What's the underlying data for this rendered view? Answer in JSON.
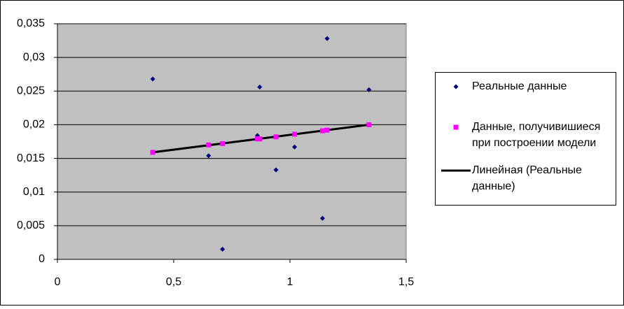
{
  "chart_data": {
    "type": "scatter",
    "xlim": [
      0,
      1.5
    ],
    "xticks": [
      0,
      {
        "value": 0.5,
        "label": "0,5"
      },
      1,
      {
        "value": 1.5,
        "label": "1,5"
      }
    ],
    "ylim": [
      0,
      0.035
    ],
    "yticks": [
      0,
      {
        "value": 0.005,
        "label": "0,005"
      },
      {
        "value": 0.01,
        "label": "0,01"
      },
      {
        "value": 0.015,
        "label": "0,015"
      },
      {
        "value": 0.02,
        "label": "0,02"
      },
      {
        "value": 0.025,
        "label": "0,025"
      },
      {
        "value": 0.03,
        "label": "0,03"
      },
      {
        "value": 0.035,
        "label": "0,035"
      }
    ],
    "grid": true,
    "legend": "right",
    "series": [
      {
        "name": "Реальные данные",
        "color": "#000080",
        "marker": "diamond",
        "x": [
          0.41,
          0.65,
          0.71,
          0.86,
          0.87,
          0.94,
          1.02,
          1.14,
          1.16,
          1.34
        ],
        "values": [
          0.0268,
          0.0154,
          0.0015,
          0.0184,
          0.0256,
          0.0133,
          0.0167,
          0.0061,
          0.0328,
          0.0252
        ]
      },
      {
        "name": "Данные, получивишиеся при построении модели",
        "color": "#ff00ff",
        "marker": "square",
        "x": [
          0.41,
          0.65,
          0.71,
          0.86,
          0.87,
          0.94,
          1.02,
          1.14,
          1.16,
          1.34
        ],
        "values": [
          0.0159,
          0.017,
          0.0172,
          0.0179,
          0.0179,
          0.0182,
          0.0186,
          0.0191,
          0.0192,
          0.02
        ]
      },
      {
        "name": "Линейная (Реальные данные)",
        "color": "#000000",
        "marker": "line",
        "x": [
          0.41,
          1.34
        ],
        "values": [
          0.0159,
          0.02
        ]
      }
    ]
  }
}
